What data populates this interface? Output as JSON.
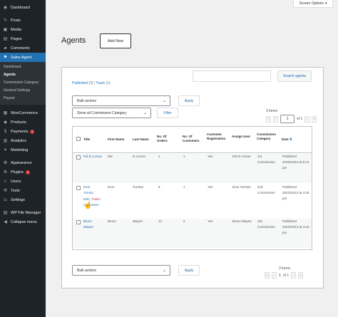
{
  "sidebar": {
    "items": [
      {
        "label": "Dashboard",
        "icon": "dashboard-icon",
        "glyph": "◉"
      },
      {
        "label": "Posts",
        "icon": "posts-icon",
        "glyph": "✎"
      },
      {
        "label": "Media",
        "icon": "media-icon",
        "glyph": "▣"
      },
      {
        "label": "Pages",
        "icon": "pages-icon",
        "glyph": "▤"
      },
      {
        "label": "Comments",
        "icon": "comments-icon",
        "glyph": "▰"
      },
      {
        "label": "Sales Agent",
        "icon": "sales-agent-icon",
        "glyph": "⚑"
      }
    ],
    "submenu": [
      "Dashboard",
      "Agents",
      "Commission Category",
      "General Settings",
      "Payout"
    ],
    "items2": [
      {
        "label": "WooCommerce",
        "icon": "woocommerce-icon",
        "glyph": "▦"
      },
      {
        "label": "Products",
        "icon": "products-icon",
        "glyph": "◆"
      },
      {
        "label": "Payments",
        "icon": "payments-icon",
        "glyph": "$",
        "badge": "1"
      },
      {
        "label": "Analytics",
        "icon": "analytics-icon",
        "glyph": "▥"
      },
      {
        "label": "Marketing",
        "icon": "marketing-icon",
        "glyph": "✦"
      }
    ],
    "items3": [
      {
        "label": "Appearance",
        "icon": "appearance-icon",
        "glyph": "✿"
      },
      {
        "label": "Plugins",
        "icon": "plugins-icon",
        "glyph": "⚙",
        "badge": "1"
      },
      {
        "label": "Users",
        "icon": "users-icon",
        "glyph": "☺"
      },
      {
        "label": "Tools",
        "icon": "tools-icon",
        "glyph": "⚒"
      },
      {
        "label": "Settings",
        "icon": "settings-icon",
        "glyph": "⚌"
      }
    ],
    "items4": [
      {
        "label": "WP File Manager",
        "icon": "file-manager-icon",
        "glyph": "▨"
      },
      {
        "label": "Collapse menu",
        "icon": "collapse-icon",
        "glyph": "◀"
      }
    ]
  },
  "screen_options": {
    "label": "Screen Options",
    "chevron": "▾"
  },
  "page": {
    "title": "Agents",
    "add_new": "Add New"
  },
  "search": {
    "button": "Search agents"
  },
  "filters": {
    "published": "Published",
    "published_count": "(3)",
    "divider": "|",
    "trash": "Trash",
    "trash_count": "(1)",
    "bulk_actions": "Bulk actions",
    "apply": "Apply",
    "category": "Show all Commission Category",
    "filter": "Filter",
    "chevron": "⌄"
  },
  "pagination": {
    "items": "3 items",
    "first": "«",
    "prev": "‹",
    "current": "1",
    "of": "of 1",
    "next": "›",
    "last": "»"
  },
  "table": {
    "headers": {
      "title": "Title",
      "first_name": "First Name",
      "last_name": "Last Name",
      "orders": "No. Of Orders",
      "customers": "No. Of Customers",
      "registration": "Customer Registration",
      "assign_user": "Assign User",
      "commission": "Commission Category",
      "date": "Date"
    },
    "rows": [
      {
        "title": "Pal D Corner",
        "first": "Pal",
        "last": "D Corner",
        "orders": "1",
        "customers": "1",
        "registration": "Yes",
        "assign": "Pal D Corner",
        "commission": "1st Commission",
        "date": "Published 2023/10/13 at 5:21 pm"
      },
      {
        "title": "Dom Torreto",
        "first": "Dom",
        "last": "Torretto",
        "orders": "8",
        "customers": "1",
        "registration": "Yes",
        "assign": "Dom Torretto",
        "commission": "2nd Commission",
        "date": "Published 2023/10/13 at 4:25 pm"
      },
      {
        "title": "Bruce Wayne",
        "first": "Bruce",
        "last": "Wayne",
        "orders": "10",
        "customers": "2",
        "registration": "Yes",
        "assign": "Bruce Wayne",
        "commission": "3rd Commission",
        "date": "Published 2023/10/13 at 4:15 pm"
      }
    ],
    "row_actions": {
      "edit": "Edit",
      "sep": "|",
      "trash": "Trash",
      "sep2": "|",
      "customers": "Customers"
    },
    "sort_icon": "⇅"
  }
}
